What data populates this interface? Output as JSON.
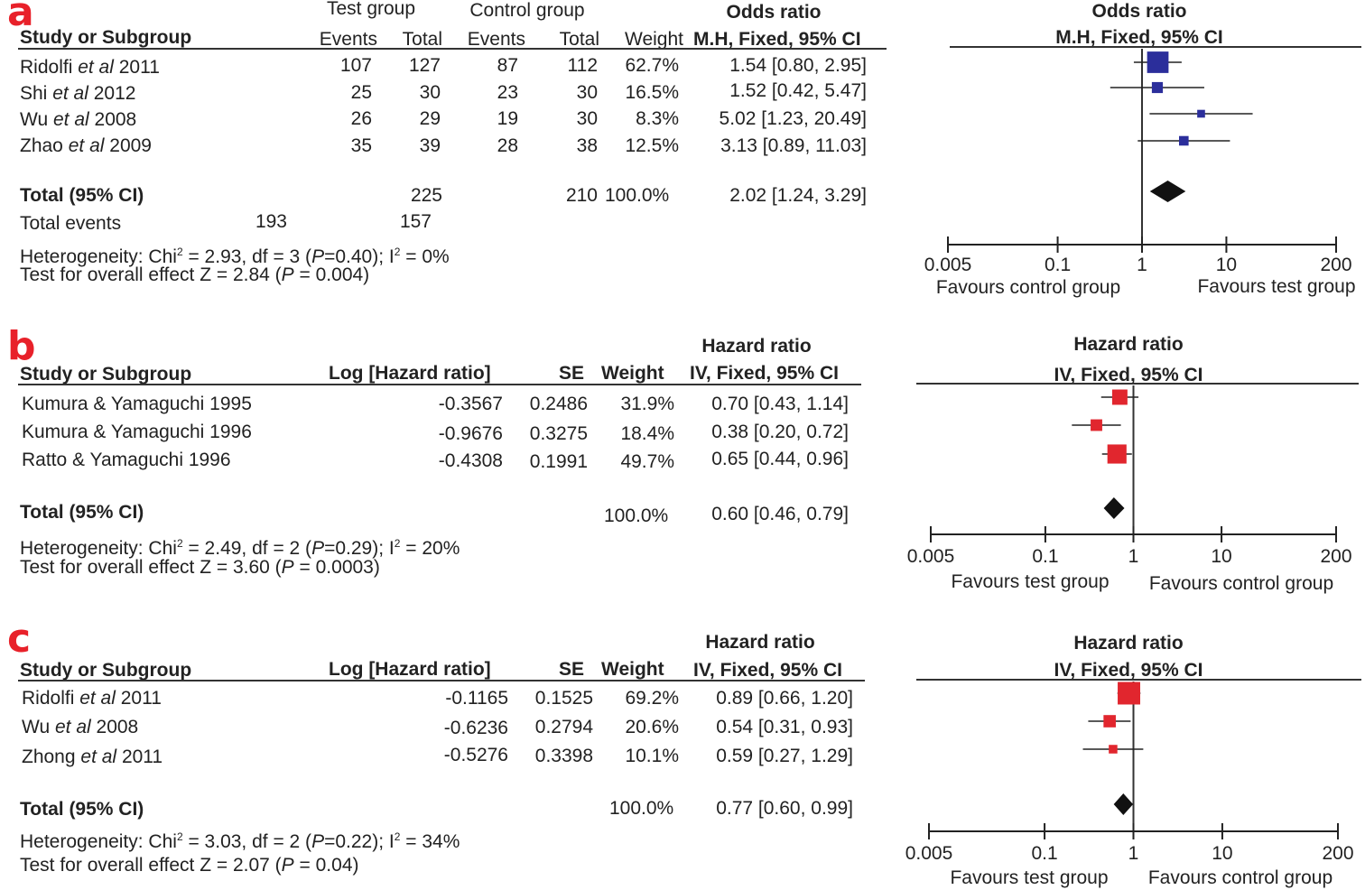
{
  "panel_a": {
    "letter": "a",
    "group_headers": {
      "test": "Test group",
      "control": "Control group",
      "effect": "Odds ratio"
    },
    "col_headers": {
      "study": "Study or Subgroup",
      "test_events": "Events",
      "test_total": "Total",
      "ctrl_events": "Events",
      "ctrl_total": "Total",
      "weight": "Weight",
      "method": "M.H, Fixed, 95% CI"
    },
    "rows": [
      {
        "name": "Ridolfi",
        "etal": "et al",
        "year": "2011",
        "test_events": "107",
        "test_total": "127",
        "ctrl_events": "87",
        "ctrl_total": "112",
        "weight": "62.7%",
        "ci": "1.54 [0.80, 2.95]"
      },
      {
        "name": "Shi",
        "etal": "et al",
        "year": "2012",
        "test_events": "25",
        "test_total": "30",
        "ctrl_events": "23",
        "ctrl_total": "30",
        "weight": "16.5%",
        "ci": "1.52 [0.42, 5.47]"
      },
      {
        "name": "Wu",
        "etal": "et al",
        "year": "2008",
        "test_events": "26",
        "test_total": "29",
        "ctrl_events": "19",
        "ctrl_total": "30",
        "weight": "8.3%",
        "ci": "5.02 [1.23, 20.49]"
      },
      {
        "name": "Zhao",
        "etal": "et al",
        "year": "2009",
        "test_events": "35",
        "test_total": "39",
        "ctrl_events": "28",
        "ctrl_total": "38",
        "weight": "12.5%",
        "ci": "3.13 [0.89, 11.03]"
      }
    ],
    "total": {
      "label": "Total (95% CI)",
      "test_total": "225",
      "ctrl_total": "210",
      "weight": "100.0%",
      "ci": "2.02 [1.24, 3.29]"
    },
    "events": {
      "label": "Total events",
      "test": "193",
      "control": "157"
    },
    "het": {
      "pre": "Heterogeneity: Chi",
      "sup": "2",
      "mid": " = 2.93, df = 3 (",
      "p": "P",
      "post": "=0.40); I",
      "sup2": "2",
      "end": " = 0%"
    },
    "overall": {
      "pre": "Test for overall effect Z = 2.84 (",
      "p": "P",
      "end": " = 0.004)"
    },
    "plot_title1": "Odds ratio",
    "plot_title2": "M.H, Fixed, 95% CI",
    "favours_left": "Favours control group",
    "favours_right": "Favours test group"
  },
  "panel_b": {
    "letter": "b",
    "effect_header": "Hazard ratio",
    "col_headers": {
      "study": "Study or Subgroup",
      "loghr": "Log [Hazard ratio]",
      "se": "SE",
      "weight": "Weight",
      "method": "IV, Fixed, 95% CI"
    },
    "rows": [
      {
        "name": "Kumura & Yamaguchi 1995",
        "loghr": "-0.3567",
        "se": "0.2486",
        "weight": "31.9%",
        "ci": "0.70 [0.43, 1.14]"
      },
      {
        "name": "Kumura & Yamaguchi 1996",
        "loghr": "-0.9676",
        "se": "0.3275",
        "weight": "18.4%",
        "ci": "0.38 [0.20, 0.72]"
      },
      {
        "name": "Ratto & Yamaguchi 1996",
        "loghr": "-0.4308",
        "se": "0.1991",
        "weight": "49.7%",
        "ci": "0.65 [0.44, 0.96]"
      }
    ],
    "total": {
      "label": "Total (95% CI)",
      "weight": "100.0%",
      "ci": "0.60 [0.46, 0.79]"
    },
    "het": {
      "pre": "Heterogeneity: Chi",
      "sup": "2",
      "mid": " = 2.49, df = 2 (",
      "p": "P",
      "post": "=0.29); I",
      "sup2": "2",
      "end": " = 20%"
    },
    "overall": {
      "pre": "Test for overall effect Z = 3.60 (",
      "p": "P",
      "end": " = 0.0003)"
    },
    "plot_title1": "Hazard ratio",
    "plot_title2": "IV, Fixed, 95% CI",
    "favours_left": "Favours test group",
    "favours_right": "Favours control group"
  },
  "panel_c": {
    "letter": "c",
    "effect_header": "Hazard ratio",
    "col_headers": {
      "study": "Study or Subgroup",
      "loghr": "Log [Hazard ratio]",
      "se": "SE",
      "weight": "Weight",
      "method": "IV, Fixed, 95% CI"
    },
    "rows": [
      {
        "name": "Ridolfi",
        "etal": "et al",
        "year": "2011",
        "loghr": "-0.1165",
        "se": "0.1525",
        "weight": "69.2%",
        "ci": "0.89 [0.66, 1.20]"
      },
      {
        "name": "Wu",
        "etal": "et al",
        "year": "2008",
        "loghr": "-0.6236",
        "se": "0.2794",
        "weight": "20.6%",
        "ci": "0.54 [0.31, 0.93]"
      },
      {
        "name": "Zhong",
        "etal": "et al",
        "year": "2011",
        "loghr": "-0.5276",
        "se": "0.3398",
        "weight": "10.1%",
        "ci": "0.59 [0.27, 1.29]"
      }
    ],
    "total": {
      "label": "Total (95% CI)",
      "weight": "100.0%",
      "ci": "0.77 [0.60, 0.99]"
    },
    "het": {
      "pre": "Heterogeneity: Chi",
      "sup": "2",
      "mid": " = 3.03, df = 2 (",
      "p": "P",
      "post": "=0.22); I",
      "sup2": "2",
      "end": " = 34%"
    },
    "overall": {
      "pre": "Test for overall effect Z = 2.07 (",
      "p": "P",
      "end": " = 0.04)"
    },
    "plot_title1": "Hazard ratio",
    "plot_title2": "IV, Fixed, 95% CI",
    "favours_left": "Favours test group",
    "favours_right": "Favours control group"
  },
  "chart_data": [
    {
      "type": "forest",
      "title": "Odds ratio M.H, Fixed, 95% CI",
      "scale": "log",
      "xlim": [
        0.005,
        200
      ],
      "ticks": [
        0.005,
        0.1,
        1,
        10,
        200
      ],
      "tick_labels": [
        "0.005",
        "0.1",
        "1",
        "10",
        "200"
      ],
      "marker_color": "#2b2e9b",
      "studies": [
        {
          "label": "Ridolfi et al 2011",
          "est": 1.54,
          "lo": 0.8,
          "hi": 2.95,
          "weight": 62.7
        },
        {
          "label": "Shi et al 2012",
          "est": 1.52,
          "lo": 0.42,
          "hi": 5.47,
          "weight": 16.5
        },
        {
          "label": "Wu et al 2008",
          "est": 5.02,
          "lo": 1.23,
          "hi": 20.49,
          "weight": 8.3
        },
        {
          "label": "Zhao et al 2009",
          "est": 3.13,
          "lo": 0.89,
          "hi": 11.03,
          "weight": 12.5
        }
      ],
      "total": {
        "est": 2.02,
        "lo": 1.24,
        "hi": 3.29
      }
    },
    {
      "type": "forest",
      "title": "Hazard ratio IV, Fixed, 95% CI",
      "scale": "log",
      "xlim": [
        0.005,
        200
      ],
      "ticks": [
        0.005,
        0.1,
        1,
        10,
        200
      ],
      "tick_labels": [
        "0.005",
        "0.1",
        "1",
        "10",
        "200"
      ],
      "marker_color": "#e1262e",
      "studies": [
        {
          "label": "Kumura & Yamaguchi 1995",
          "est": 0.7,
          "lo": 0.43,
          "hi": 1.14,
          "weight": 31.9
        },
        {
          "label": "Kumura & Yamaguchi 1996",
          "est": 0.38,
          "lo": 0.2,
          "hi": 0.72,
          "weight": 18.4
        },
        {
          "label": "Ratto & Yamaguchi 1996",
          "est": 0.65,
          "lo": 0.44,
          "hi": 0.96,
          "weight": 49.7
        }
      ],
      "total": {
        "est": 0.6,
        "lo": 0.46,
        "hi": 0.79
      }
    },
    {
      "type": "forest",
      "title": "Hazard ratio IV, Fixed, 95% CI",
      "scale": "log",
      "xlim": [
        0.005,
        200
      ],
      "ticks": [
        0.005,
        0.1,
        1,
        10,
        200
      ],
      "tick_labels": [
        "0.005",
        "0.1",
        "1",
        "10",
        "200"
      ],
      "marker_color": "#e1262e",
      "studies": [
        {
          "label": "Ridolfi et al 2011",
          "est": 0.89,
          "lo": 0.66,
          "hi": 1.2,
          "weight": 69.2
        },
        {
          "label": "Wu et al 2008",
          "est": 0.54,
          "lo": 0.31,
          "hi": 0.93,
          "weight": 20.6
        },
        {
          "label": "Zhong et al 2011",
          "est": 0.59,
          "lo": 0.27,
          "hi": 1.29,
          "weight": 10.1
        }
      ],
      "total": {
        "est": 0.77,
        "lo": 0.6,
        "hi": 0.99
      }
    }
  ]
}
